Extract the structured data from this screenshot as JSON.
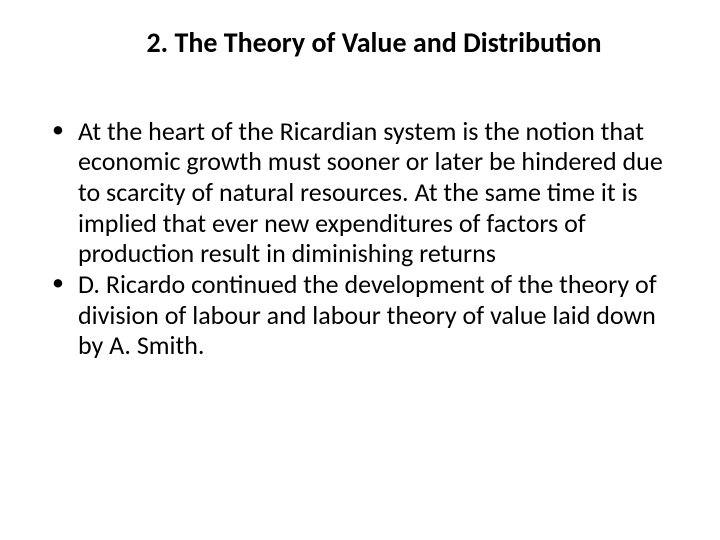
{
  "slide": {
    "title": "2. The Theory of Value and Distribution",
    "bullets": [
      "At the heart of the Ricardian system is the notion that economic growth must sooner or later be hindered due to scarcity of natural resources. At the same time it is implied that ever new expenditures of factors of production result in diminishing returns",
      "D. Ricardo continued the development of the theory of division of labour and labour theory of value laid down by A. Smith."
    ]
  },
  "style": {
    "background_color": "#ffffff",
    "text_color": "#000000",
    "title_fontsize": 28,
    "title_fontweight": 700,
    "body_fontsize": 26,
    "font_family": "Calibri",
    "line_height": 1.18
  }
}
